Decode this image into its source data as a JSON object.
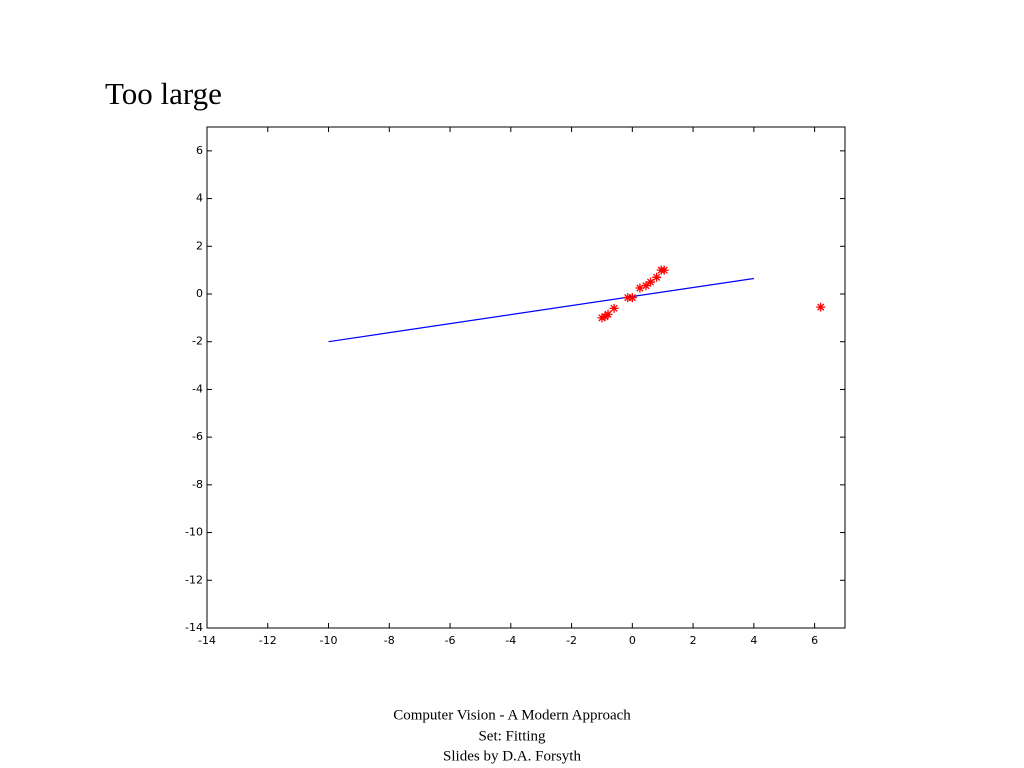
{
  "chart_data": {
    "type": "scatter",
    "title": "Too large",
    "xlim": [
      -14,
      7
    ],
    "ylim": [
      -14,
      7
    ],
    "xticks": [
      -14,
      -12,
      -10,
      -8,
      -6,
      -4,
      -2,
      0,
      2,
      4,
      6
    ],
    "yticks": [
      6,
      4,
      2,
      0,
      -2,
      -4,
      -6,
      -8,
      -10,
      -12,
      -14
    ],
    "series": [
      {
        "type": "line",
        "color": "#0000ff",
        "x": [
          -10,
          4
        ],
        "values": [
          -2,
          0.65
        ]
      },
      {
        "type": "scatter",
        "color": "#ff0000",
        "x": [
          -1.0,
          -0.9,
          -0.8,
          -0.6,
          -0.15,
          0.0,
          0.25,
          0.45,
          0.6,
          0.8,
          0.95,
          1.05,
          6.2
        ],
        "values": [
          -1.0,
          -0.95,
          -0.85,
          -0.6,
          -0.15,
          -0.15,
          0.25,
          0.35,
          0.5,
          0.7,
          1.0,
          1.0,
          -0.55
        ]
      }
    ]
  },
  "footer": [
    "Computer Vision - A Modern Approach",
    "Set:  Fitting",
    "Slides by D.A. Forsyth"
  ]
}
